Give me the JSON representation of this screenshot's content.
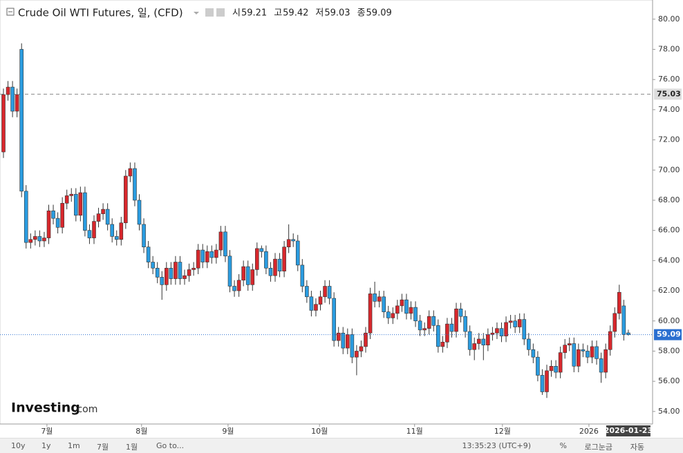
{
  "chart_data": {
    "type": "candlestick",
    "title": "Crude Oil WTI Futures, 일, (CFD)",
    "header_labels": {
      "open": "시",
      "high": "고",
      "low": "저",
      "close": "종"
    },
    "open": [
      71.2,
      75.0,
      75.5,
      73.9,
      78.0,
      68.6,
      65.2,
      65.4,
      65.6,
      65.3,
      65.5,
      67.3,
      66.8,
      66.2,
      67.8,
      68.3,
      68.4,
      67.0,
      68.5,
      66.0,
      65.5,
      66.6,
      67.1,
      67.4,
      66.4,
      65.6,
      65.4,
      66.5,
      69.6,
      70.1,
      68.0,
      66.4,
      64.9,
      63.9,
      63.5,
      62.9,
      62.4,
      63.5,
      62.8,
      63.9,
      62.8,
      63.0,
      63.4,
      63.5,
      64.7,
      63.9,
      64.6,
      64.2,
      64.7,
      65.9,
      64.3,
      62.3,
      62.0,
      62.7,
      63.6,
      62.4,
      63.4,
      64.8,
      64.6,
      63.5,
      63.0,
      64.1,
      63.3,
      64.9,
      65.4,
      65.3,
      63.7,
      62.3,
      61.6,
      60.7,
      61.1,
      61.6,
      62.3,
      61.5,
      58.7,
      59.2,
      58.2,
      59.1,
      57.6,
      58.0,
      58.3,
      59.2,
      61.8,
      61.3,
      61.6,
      60.6,
      60.2,
      60.5,
      61.0,
      61.4,
      60.5,
      60.9,
      60.0,
      59.4,
      59.5,
      60.3,
      59.7,
      58.3,
      58.6,
      59.8,
      59.3,
      60.8,
      60.3,
      59.3,
      58.1,
      58.5,
      58.8,
      58.4,
      59.1,
      59.2,
      59.5,
      59.0,
      59.9,
      60.0,
      59.6,
      60.1,
      58.8,
      58.1,
      57.6,
      56.4,
      55.3,
      56.7,
      57.0,
      56.6,
      57.9,
      58.4,
      58.5,
      57.0,
      58.1,
      58.0,
      57.6,
      58.3,
      57.5,
      56.6,
      58.1,
      59.3,
      60.5,
      61.0,
      59.21
    ],
    "high": [
      75.4,
      75.9,
      75.9,
      75.4,
      78.4,
      69.0,
      65.8,
      66.0,
      66.0,
      65.9,
      67.7,
      67.7,
      67.2,
      68.2,
      68.7,
      68.8,
      68.8,
      68.9,
      68.9,
      66.4,
      67.0,
      67.5,
      67.8,
      67.8,
      66.8,
      66.0,
      66.9,
      70.0,
      70.5,
      70.5,
      68.4,
      66.8,
      65.3,
      64.3,
      63.9,
      63.3,
      63.9,
      63.9,
      64.3,
      64.3,
      63.4,
      63.8,
      63.9,
      65.1,
      65.1,
      65.0,
      65.0,
      65.1,
      66.3,
      66.3,
      64.7,
      62.7,
      63.1,
      64.0,
      64.0,
      63.8,
      65.2,
      65.0,
      65.0,
      63.9,
      64.5,
      64.5,
      65.3,
      66.4,
      65.8,
      65.7,
      64.1,
      62.7,
      62.0,
      61.5,
      62.0,
      62.7,
      62.7,
      61.9,
      59.6,
      59.6,
      59.5,
      59.5,
      58.4,
      58.7,
      59.6,
      62.2,
      62.6,
      62.0,
      62.0,
      61.0,
      60.9,
      61.4,
      61.8,
      61.8,
      61.3,
      61.3,
      60.4,
      59.9,
      60.7,
      60.7,
      60.1,
      59.0,
      60.2,
      60.2,
      61.2,
      61.2,
      60.7,
      59.7,
      58.9,
      59.2,
      59.2,
      59.5,
      59.6,
      59.9,
      59.9,
      60.3,
      60.4,
      60.4,
      60.5,
      60.5,
      59.2,
      58.5,
      58.0,
      56.8,
      57.1,
      57.4,
      57.4,
      58.3,
      58.8,
      58.9,
      58.9,
      58.5,
      58.5,
      58.4,
      58.7,
      58.7,
      57.9,
      58.5,
      59.7,
      60.9,
      62.4,
      61.4,
      59.42
    ],
    "low": [
      70.8,
      74.6,
      73.5,
      73.5,
      68.2,
      64.8,
      64.8,
      65.0,
      64.9,
      64.9,
      65.1,
      66.4,
      65.8,
      65.8,
      67.4,
      67.9,
      66.6,
      66.6,
      65.6,
      65.1,
      65.1,
      66.2,
      66.7,
      66.0,
      65.2,
      65.0,
      65.0,
      66.1,
      69.2,
      67.6,
      66.0,
      64.5,
      63.5,
      63.1,
      62.5,
      61.4,
      62.0,
      62.4,
      62.4,
      62.4,
      62.4,
      62.6,
      63.0,
      63.1,
      63.5,
      63.5,
      63.8,
      63.8,
      64.3,
      63.9,
      61.9,
      61.6,
      61.6,
      62.3,
      62.0,
      62.0,
      63.0,
      64.2,
      63.1,
      62.6,
      62.6,
      62.9,
      62.9,
      64.5,
      64.9,
      63.3,
      61.9,
      61.2,
      60.3,
      60.3,
      60.7,
      61.2,
      61.1,
      58.3,
      58.3,
      57.8,
      57.8,
      57.2,
      56.4,
      57.6,
      57.9,
      58.8,
      60.9,
      60.9,
      60.2,
      59.8,
      59.8,
      60.1,
      60.6,
      60.1,
      60.1,
      59.6,
      59.0,
      59.0,
      59.1,
      59.3,
      57.9,
      57.9,
      58.2,
      58.9,
      58.9,
      59.9,
      58.9,
      57.7,
      57.4,
      58.1,
      57.4,
      58.0,
      58.7,
      58.8,
      58.6,
      58.6,
      59.5,
      59.2,
      59.2,
      58.4,
      57.7,
      57.2,
      56.0,
      55.1,
      54.9,
      56.3,
      56.2,
      56.2,
      57.5,
      58.0,
      56.6,
      56.6,
      57.6,
      57.2,
      57.2,
      57.1,
      55.9,
      56.2,
      57.7,
      58.9,
      60.1,
      58.7,
      59.03
    ],
    "close": [
      75.0,
      75.5,
      73.9,
      75.0,
      68.6,
      65.2,
      65.4,
      65.6,
      65.3,
      65.5,
      67.3,
      66.8,
      66.2,
      67.8,
      68.3,
      68.4,
      67.0,
      68.5,
      66.0,
      65.5,
      66.6,
      67.1,
      67.4,
      66.4,
      65.6,
      65.4,
      66.5,
      69.6,
      70.1,
      68.0,
      66.4,
      64.9,
      63.9,
      63.5,
      62.9,
      62.4,
      63.5,
      62.8,
      63.9,
      62.8,
      63.0,
      63.4,
      63.5,
      64.7,
      63.9,
      64.6,
      64.2,
      64.7,
      65.9,
      64.3,
      62.3,
      62.0,
      62.7,
      63.6,
      62.4,
      63.4,
      64.8,
      64.6,
      63.5,
      63.0,
      64.1,
      63.3,
      64.9,
      65.4,
      65.3,
      63.7,
      62.3,
      61.6,
      60.7,
      61.1,
      61.6,
      62.3,
      61.5,
      58.7,
      59.2,
      58.2,
      59.1,
      57.6,
      58.0,
      58.3,
      59.2,
      61.8,
      61.3,
      61.6,
      60.6,
      60.2,
      60.5,
      61.0,
      61.4,
      60.5,
      60.9,
      60.0,
      59.4,
      59.5,
      60.3,
      59.7,
      58.3,
      58.6,
      59.8,
      59.3,
      60.8,
      60.3,
      59.3,
      58.1,
      58.5,
      58.8,
      58.4,
      59.1,
      59.2,
      59.5,
      59.0,
      59.9,
      60.0,
      59.6,
      60.1,
      58.8,
      58.1,
      57.6,
      56.4,
      55.3,
      56.7,
      57.0,
      56.6,
      57.9,
      58.4,
      58.5,
      57.0,
      58.1,
      58.0,
      57.6,
      58.3,
      57.5,
      56.6,
      58.1,
      59.3,
      60.5,
      61.9,
      59.1,
      59.09
    ],
    "up_color": "#d7272c",
    "down_color": "#2a9ce0",
    "ylim": [
      53.17,
      81.27
    ],
    "yticks": [
      {
        "value": 54,
        "label": "54.00"
      },
      {
        "value": 56,
        "label": "56.00"
      },
      {
        "value": 58,
        "label": "58.00"
      },
      {
        "value": 60,
        "label": "60.00"
      },
      {
        "value": 62,
        "label": "62.00"
      },
      {
        "value": 64,
        "label": "64.00"
      },
      {
        "value": 66,
        "label": "66.00"
      },
      {
        "value": 68,
        "label": "68.00"
      },
      {
        "value": 70,
        "label": "70.00"
      },
      {
        "value": 72,
        "label": "72.00"
      },
      {
        "value": 74,
        "label": "74.00"
      },
      {
        "value": 76,
        "label": "76.00"
      },
      {
        "value": 78,
        "label": "78.00"
      },
      {
        "value": 80,
        "label": "80.00"
      }
    ],
    "xticks": [
      {
        "value": 9.6,
        "label": "7월"
      },
      {
        "value": 30.5,
        "label": "8월"
      },
      {
        "value": 49.6,
        "label": "9월"
      },
      {
        "value": 69.8,
        "label": "10월"
      },
      {
        "value": 90.8,
        "label": "11월"
      },
      {
        "value": 110.2,
        "label": "12월"
      },
      {
        "value": 129.3,
        "label": "2026"
      }
    ],
    "reference_line": 75.03,
    "cursor_date": "2026-01-23",
    "watermark": [
      "Investing",
      ".com"
    ],
    "toolbar_left": [
      "10y",
      "1y",
      "1m",
      "7월",
      "1월",
      "Go to..."
    ],
    "toolbar_right": [
      "13:35:23 (UTC+9)",
      "%",
      "로그눈금",
      "자동"
    ]
  }
}
